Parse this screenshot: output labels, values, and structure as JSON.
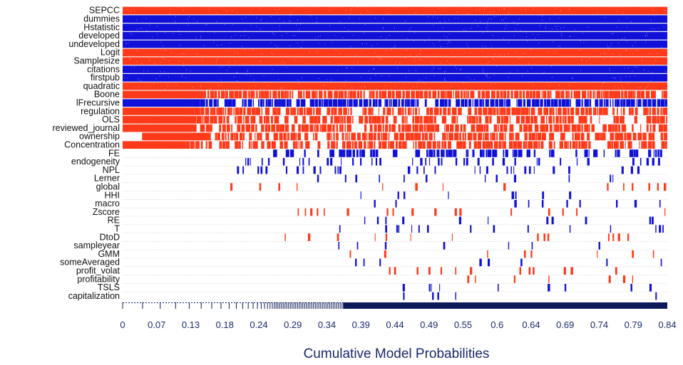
{
  "chart_data": {
    "type": "heatmap",
    "title": "",
    "xlabel": "Cumulative Model Probabilities",
    "ylabel": "",
    "xlim": [
      0,
      0.84
    ],
    "x_tick_labels": [
      "0",
      "0.07",
      "0.13",
      "0.18",
      "0.24",
      "0.29",
      "0.34",
      "0.39",
      "0.44",
      "0.49",
      "0.55",
      "0.6",
      "0.64",
      "0.69",
      "0.74",
      "0.79",
      "0.84"
    ],
    "variables": [
      "SEPCC",
      "dummies",
      "Hstatistic",
      "developed",
      "undeveloped",
      "Logit",
      "Samplesize",
      "citations",
      "firstpub",
      "quadratic",
      "Boone",
      "lFrecursive",
      "regulation",
      "OLS",
      "reviewed_journal",
      "ownership",
      "Concentration",
      "FE",
      "endogeneity",
      "NPL",
      "Lerner",
      "global",
      "HHI",
      "macro",
      "Zscore",
      "RE",
      "T",
      "DtoD",
      "sampleyear",
      "GMM",
      "someAveraged",
      "profit_volat",
      "profitability",
      "TSLS",
      "capitalization"
    ],
    "sign_legend": {
      "positive": "blue",
      "negative": "red"
    },
    "rows": [
      {
        "variable": "SEPCC",
        "sign": "negative",
        "inclusion_start": 0.0,
        "density": 1.0
      },
      {
        "variable": "dummies",
        "sign": "positive",
        "inclusion_start": 0.0,
        "density": 1.0
      },
      {
        "variable": "Hstatistic",
        "sign": "positive",
        "inclusion_start": 0.0,
        "density": 1.0
      },
      {
        "variable": "developed",
        "sign": "positive",
        "inclusion_start": 0.0,
        "density": 1.0
      },
      {
        "variable": "undeveloped",
        "sign": "positive",
        "inclusion_start": 0.0,
        "density": 1.0
      },
      {
        "variable": "Logit",
        "sign": "negative",
        "inclusion_start": 0.0,
        "density": 1.0
      },
      {
        "variable": "Samplesize",
        "sign": "negative",
        "inclusion_start": 0.0,
        "density": 1.0
      },
      {
        "variable": "citations",
        "sign": "positive",
        "inclusion_start": 0.0,
        "density": 1.0
      },
      {
        "variable": "firstpub",
        "sign": "positive",
        "inclusion_start": 0.0,
        "density": 1.0
      },
      {
        "variable": "quadratic",
        "sign": "negative",
        "inclusion_start": 0.0,
        "density": 1.0
      },
      {
        "variable": "Boone",
        "sign": "negative",
        "inclusion_start": 0.0,
        "density": 0.95
      },
      {
        "variable": "lFrecursive",
        "sign": "positive",
        "inclusion_start": 0.0,
        "density": 0.92
      },
      {
        "variable": "regulation",
        "sign": "negative",
        "inclusion_start": 0.0,
        "density": 0.9
      },
      {
        "variable": "OLS",
        "sign": "negative",
        "inclusion_start": 0.0,
        "density": 0.85
      },
      {
        "variable": "reviewed_journal",
        "sign": "negative",
        "inclusion_start": 0.0,
        "density": 0.82
      },
      {
        "variable": "ownership",
        "sign": "negative",
        "inclusion_start": 0.03,
        "density": 0.8
      },
      {
        "variable": "Concentration",
        "sign": "negative",
        "inclusion_start": 0.0,
        "density": 0.75
      },
      {
        "variable": "FE",
        "sign": "positive",
        "inclusion_start": 0.22,
        "density": 0.55
      },
      {
        "variable": "endogeneity",
        "sign": "positive",
        "inclusion_start": 0.18,
        "density": 0.35
      },
      {
        "variable": "NPL",
        "sign": "positive",
        "inclusion_start": 0.17,
        "density": 0.3
      },
      {
        "variable": "Lerner",
        "sign": "positive",
        "inclusion_start": 0.3,
        "density": 0.2
      },
      {
        "variable": "global",
        "sign": "negative",
        "inclusion_start": 0.14,
        "density": 0.15
      },
      {
        "variable": "HHI",
        "sign": "positive",
        "inclusion_start": 0.33,
        "density": 0.15
      },
      {
        "variable": "macro",
        "sign": "positive",
        "inclusion_start": 0.34,
        "density": 0.15
      },
      {
        "variable": "Zscore",
        "sign": "negative",
        "inclusion_start": 0.27,
        "density": 0.14
      },
      {
        "variable": "RE",
        "sign": "positive",
        "inclusion_start": 0.33,
        "density": 0.14
      },
      {
        "variable": "T",
        "sign": "positive",
        "inclusion_start": 0.33,
        "density": 0.13
      },
      {
        "variable": "DtoD",
        "sign": "negative",
        "inclusion_start": 0.25,
        "density": 0.12
      },
      {
        "variable": "sampleyear",
        "sign": "positive",
        "inclusion_start": 0.31,
        "density": 0.12
      },
      {
        "variable": "GMM",
        "sign": "negative",
        "inclusion_start": 0.34,
        "density": 0.12
      },
      {
        "variable": "someAveraged",
        "sign": "positive",
        "inclusion_start": 0.32,
        "density": 0.1
      },
      {
        "variable": "profit_volat",
        "sign": "negative",
        "inclusion_start": 0.33,
        "density": 0.1
      },
      {
        "variable": "profitability",
        "sign": "negative",
        "inclusion_start": 0.36,
        "density": 0.1
      },
      {
        "variable": "TSLS",
        "sign": "positive",
        "inclusion_start": 0.37,
        "density": 0.1
      },
      {
        "variable": "capitalization",
        "sign": "positive",
        "inclusion_start": 0.37,
        "density": 0.05
      }
    ],
    "colors": {
      "positive": "#1010d8",
      "negative": "#ff3a1a",
      "axis": "#0d1a5a",
      "text": "#1a2a6c",
      "label": "#111111"
    },
    "grid": true,
    "legend": "none"
  }
}
